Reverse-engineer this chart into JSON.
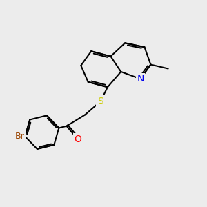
{
  "background_color": "#ececec",
  "bond_color": "#000000",
  "bond_width": 1.5,
  "atom_colors": {
    "N": "#0000ee",
    "O": "#ff0000",
    "S": "#cccc00",
    "Br": "#994400",
    "C": "#000000"
  }
}
